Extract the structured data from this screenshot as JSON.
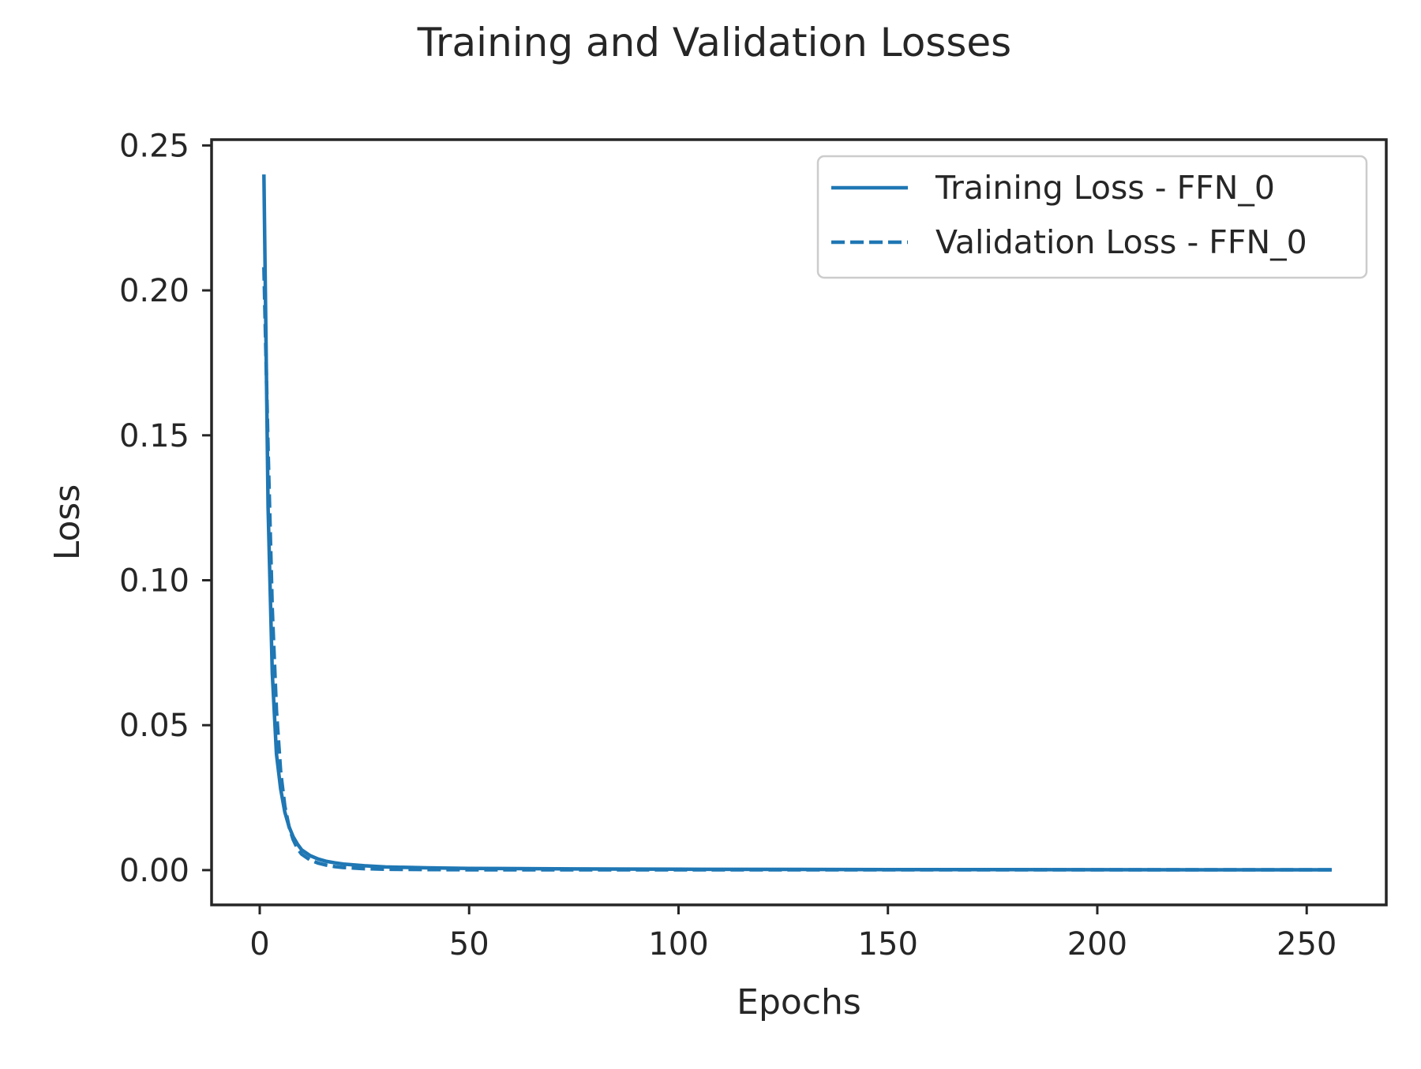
{
  "chart_data": {
    "type": "line",
    "title": "Training and Validation Losses",
    "xlabel": "Epochs",
    "ylabel": "Loss",
    "xlim": [
      -11.5,
      269
    ],
    "ylim": [
      -0.012,
      0.252
    ],
    "x_ticks": [
      0,
      50,
      100,
      150,
      200,
      250
    ],
    "y_ticks": [
      0.0,
      0.05,
      0.1,
      0.15,
      0.2,
      0.25
    ],
    "x_tick_labels": [
      "0",
      "50",
      "100",
      "150",
      "200",
      "250"
    ],
    "y_tick_labels": [
      "0.00",
      "0.05",
      "0.10",
      "0.15",
      "0.20",
      "0.25"
    ],
    "grid": false,
    "legend_position": "upper right",
    "series": [
      {
        "name": "Training Loss - FFN_0",
        "style": "solid",
        "color": "#1f77b4",
        "x": [
          1,
          2,
          3,
          4,
          5,
          6,
          7,
          8,
          9,
          10,
          12,
          14,
          16,
          18,
          20,
          25,
          30,
          40,
          50,
          75,
          100,
          150,
          200,
          256
        ],
        "y": [
          0.24,
          0.125,
          0.068,
          0.04,
          0.028,
          0.02,
          0.015,
          0.0115,
          0.009,
          0.007,
          0.005,
          0.0038,
          0.003,
          0.0025,
          0.0021,
          0.0015,
          0.0011,
          0.0008,
          0.0006,
          0.0004,
          0.0003,
          0.0002,
          0.00015,
          0.0001
        ]
      },
      {
        "name": "Validation Loss - FFN_0",
        "style": "dashed",
        "color": "#1f77b4",
        "x": [
          1,
          2,
          3,
          4,
          5,
          6,
          7,
          8,
          9,
          10,
          12,
          14,
          16,
          18,
          20,
          25,
          30,
          40,
          50,
          75,
          100,
          150,
          200,
          256
        ],
        "y": [
          0.208,
          0.145,
          0.09,
          0.055,
          0.034,
          0.022,
          0.015,
          0.0105,
          0.0075,
          0.0055,
          0.0035,
          0.0024,
          0.0017,
          0.0012,
          0.0009,
          0.0005,
          0.0003,
          0.0002,
          0.0001,
          0.0001,
          0.0001,
          0.0001,
          0.0001,
          0.0001
        ]
      }
    ]
  }
}
